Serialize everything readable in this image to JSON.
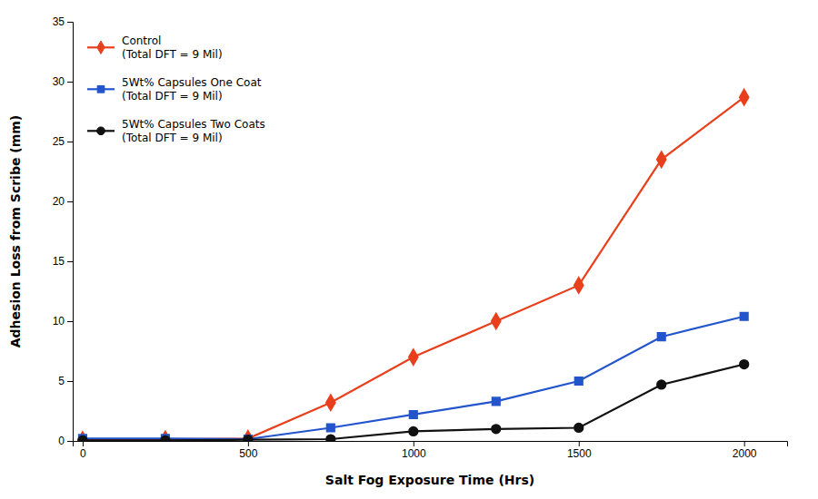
{
  "chart_data": {
    "type": "line",
    "xlabel": "Salt Fog Exposure Time (Hrs)",
    "ylabel": "Adhesion Loss from Scribe (mm)",
    "x": [
      0,
      250,
      500,
      750,
      1000,
      1250,
      1500,
      1750,
      2000
    ],
    "series": [
      {
        "name": "Control\n(Total DFT = 9 Mil)",
        "color": "#e8401c",
        "marker": "diamond",
        "values": [
          0.1,
          0.15,
          0.2,
          3.2,
          7.0,
          10.0,
          13.0,
          23.5,
          28.7
        ]
      },
      {
        "name": "5Wt% Capsules One Coat\n(Total DFT = 9 Mil)",
        "color": "#2255cc",
        "marker": "square",
        "values": [
          0.2,
          0.2,
          0.15,
          1.1,
          2.2,
          3.3,
          5.0,
          8.7,
          10.4
        ]
      },
      {
        "name": "5Wt% Capsules Two Coats\n(Total DFT = 9 Mil)",
        "color": "#111111",
        "marker": "circle",
        "values": [
          0.05,
          0.05,
          0.1,
          0.15,
          0.8,
          1.0,
          1.1,
          4.7,
          6.4
        ]
      }
    ],
    "xlim": [
      -30,
      2130
    ],
    "ylim": [
      0,
      35
    ],
    "xticks": [
      0,
      500,
      1000,
      1500,
      2000
    ],
    "yticks": [
      0,
      5,
      10,
      15,
      20,
      25,
      30,
      35
    ],
    "grid": false,
    "legend": "upper left"
  }
}
